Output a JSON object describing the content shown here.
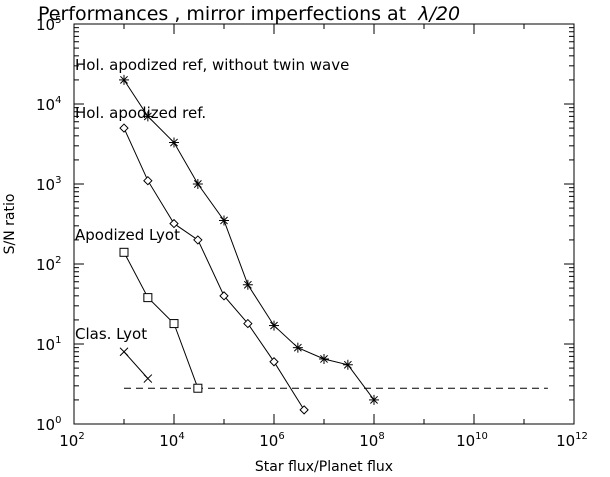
{
  "chart_data": {
    "type": "line",
    "title_main": "Performances , mirror imperfections at  ",
    "title_symbol": "λ/20",
    "xlabel": "Star flux/Planet flux",
    "ylabel": "S/N ratio",
    "xscale": "log",
    "yscale": "log",
    "xlim": [
      100,
      1000000000000
    ],
    "ylim": [
      1,
      100000
    ],
    "x_ticks": [
      {
        "base": "10",
        "exp": "2",
        "value": 100
      },
      {
        "base": "10",
        "exp": "4",
        "value": 10000
      },
      {
        "base": "10",
        "exp": "6",
        "value": 1000000
      },
      {
        "base": "10",
        "exp": "8",
        "value": 100000000
      },
      {
        "base": "10",
        "exp": "10",
        "value": 10000000000
      },
      {
        "base": "10",
        "exp": "12",
        "value": 1000000000000
      }
    ],
    "y_ticks": [
      {
        "base": "10",
        "exp": "0",
        "value": 1
      },
      {
        "base": "10",
        "exp": "1",
        "value": 10
      },
      {
        "base": "10",
        "exp": "2",
        "value": 100
      },
      {
        "base": "10",
        "exp": "3",
        "value": 1000
      },
      {
        "base": "10",
        "exp": "4",
        "value": 10000
      },
      {
        "base": "10",
        "exp": "5",
        "value": 100000
      }
    ],
    "grid": false,
    "series": [
      {
        "name": "Hol. apodized ref, without twin wave",
        "marker": "asterisk",
        "x": [
          1000,
          3000,
          10000,
          30000,
          100000,
          300000,
          1000000,
          3000000,
          10000000,
          30000000,
          100000000
        ],
        "y": [
          20000,
          7000,
          3300,
          1000,
          350,
          55,
          17,
          9,
          6.5,
          5.5,
          2
        ]
      },
      {
        "name": "Hol. apodized ref.",
        "marker": "diamond",
        "x": [
          1000,
          3000,
          10000,
          30000,
          100000,
          300000,
          1000000,
          4000000
        ],
        "y": [
          5000,
          1100,
          320,
          200,
          40,
          18,
          6,
          1.5
        ]
      },
      {
        "name": "Apodized Lyot",
        "marker": "square",
        "x": [
          1000,
          3000,
          10000,
          30000
        ],
        "y": [
          140,
          38,
          18,
          2.8
        ]
      },
      {
        "name": "Clas. Lyot",
        "marker": "cross",
        "x": [
          1000,
          3000
        ],
        "y": [
          8,
          3.7
        ]
      }
    ],
    "threshold": {
      "y": 2.8,
      "x_start": 1000,
      "x_end": 300000000000
    },
    "annotations": [
      {
        "text": "Hol. apodized ref, without twin wave",
        "series": 0
      },
      {
        "text": "Hol. apodized ref.",
        "series": 1
      },
      {
        "text": "Apodized Lyot",
        "series": 2
      },
      {
        "text": "Clas. Lyot",
        "series": 3
      }
    ]
  }
}
